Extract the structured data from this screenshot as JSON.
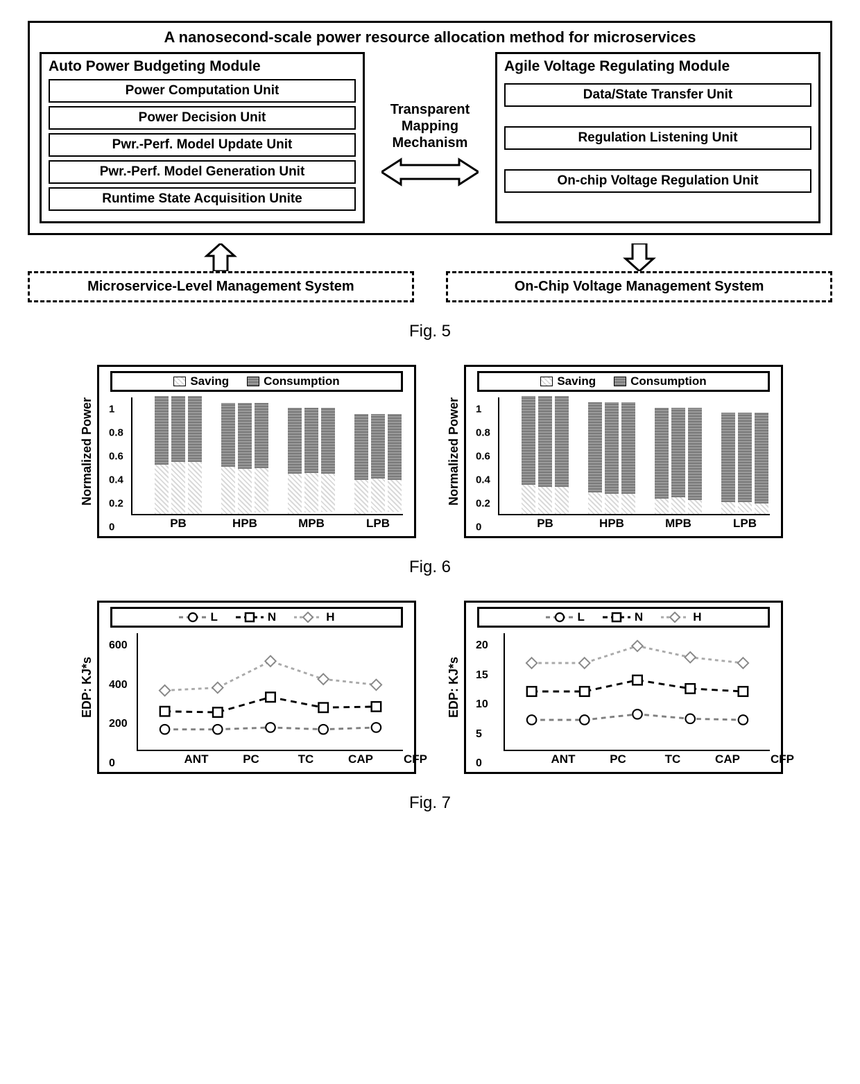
{
  "fig5": {
    "title": "A nanosecond-scale power resource allocation method for microservices",
    "left_module": {
      "title": "Auto Power Budgeting Module",
      "units": [
        "Power Computation Unit",
        "Power Decision Unit",
        "Pwr.-Perf. Model Update Unit",
        "Pwr.-Perf. Model Generation Unit",
        "Runtime State Acquisition Unite"
      ]
    },
    "middle_label": "Transparent\nMapping\nMechanism",
    "right_module": {
      "title": "Agile Voltage Regulating Module",
      "units": [
        "Data/State Transfer Unit",
        "Regulation Listening Unit",
        "On-chip Voltage Regulation Unit"
      ]
    },
    "bottom_left": "Microservice-Level Management System",
    "bottom_right": "On-Chip Voltage Management System",
    "caption": "Fig. 5"
  },
  "fig6": {
    "ylabel": "Normalized Power",
    "legend": {
      "a": "Saving",
      "b": "Consumption"
    },
    "colors": {
      "saving": "#d9d9d9",
      "consumption": "#8a8a8a",
      "border": "#000000"
    },
    "yticks": [
      0,
      0.2,
      0.4,
      0.6,
      0.8,
      1
    ],
    "ylim": [
      0,
      1
    ],
    "categories": [
      "PB",
      "HPB",
      "MPB",
      "LPB"
    ],
    "bars_per_group": 3,
    "left": {
      "saving": [
        [
          0.42,
          0.44,
          0.44
        ],
        [
          0.4,
          0.38,
          0.38
        ],
        [
          0.34,
          0.34,
          0.32
        ],
        [
          0.29,
          0.29,
          0.27
        ]
      ],
      "consumption": [
        [
          0.58,
          0.56,
          0.56
        ],
        [
          0.54,
          0.56,
          0.55
        ],
        [
          0.56,
          0.55,
          0.56
        ],
        [
          0.56,
          0.55,
          0.56
        ]
      ]
    },
    "right": {
      "saving": [
        [
          0.25,
          0.23,
          0.23
        ],
        [
          0.18,
          0.17,
          0.17
        ],
        [
          0.13,
          0.14,
          0.12
        ],
        [
          0.1,
          0.09,
          0.09
        ]
      ],
      "consumption": [
        [
          0.75,
          0.77,
          0.77
        ],
        [
          0.77,
          0.78,
          0.78
        ],
        [
          0.77,
          0.76,
          0.78
        ],
        [
          0.76,
          0.76,
          0.77
        ]
      ]
    },
    "caption": "Fig. 6"
  },
  "fig7": {
    "ylabel": "EDP: KJ*s",
    "legend": {
      "L": "L",
      "N": "N",
      "H": "H"
    },
    "categories": [
      "ANT",
      "PC",
      "TC",
      "CAP",
      "CFP"
    ],
    "colors": {
      "L": "#808080",
      "N": "#000000",
      "H": "#aaaaaa"
    },
    "left": {
      "ylim": [
        0,
        600
      ],
      "yticks": [
        0,
        200,
        400,
        600
      ],
      "L": [
        100,
        100,
        110,
        100,
        110
      ],
      "N": [
        195,
        190,
        270,
        215,
        220
      ],
      "H": [
        305,
        320,
        460,
        365,
        335
      ]
    },
    "right": {
      "ylim": [
        0,
        20
      ],
      "yticks": [
        0,
        5,
        10,
        15,
        20
      ],
      "L": [
        5.0,
        5.0,
        6.0,
        5.2,
        5.0
      ],
      "N": [
        10.0,
        10.0,
        12.0,
        10.5,
        10.0
      ],
      "H": [
        15.0,
        15.0,
        18.0,
        16.0,
        15.0
      ]
    },
    "caption": "Fig. 7"
  }
}
